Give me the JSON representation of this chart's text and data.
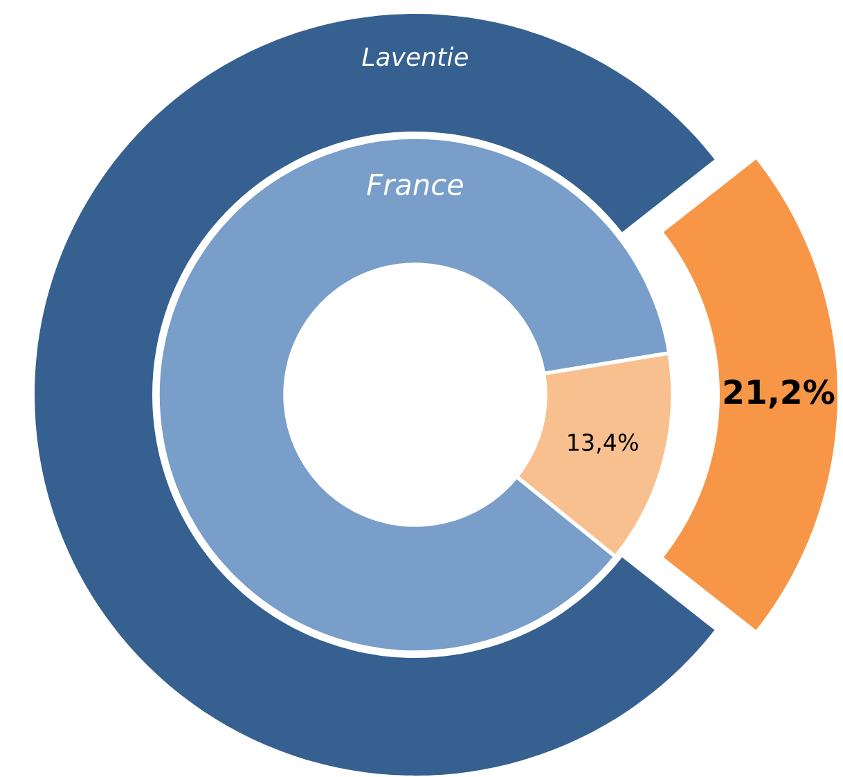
{
  "chart_data": {
    "type": "donut",
    "series": [
      {
        "name": "Laventie",
        "values": [
          78.8,
          21.2
        ],
        "colors": [
          "#36608f",
          "#f79646"
        ],
        "value_labels": [
          null,
          "21,2%"
        ]
      },
      {
        "name": "France",
        "values": [
          86.6,
          13.4
        ],
        "colors": [
          "#789ec9",
          "#f9c08f"
        ],
        "value_labels": [
          null,
          "13,4%"
        ]
      }
    ]
  }
}
